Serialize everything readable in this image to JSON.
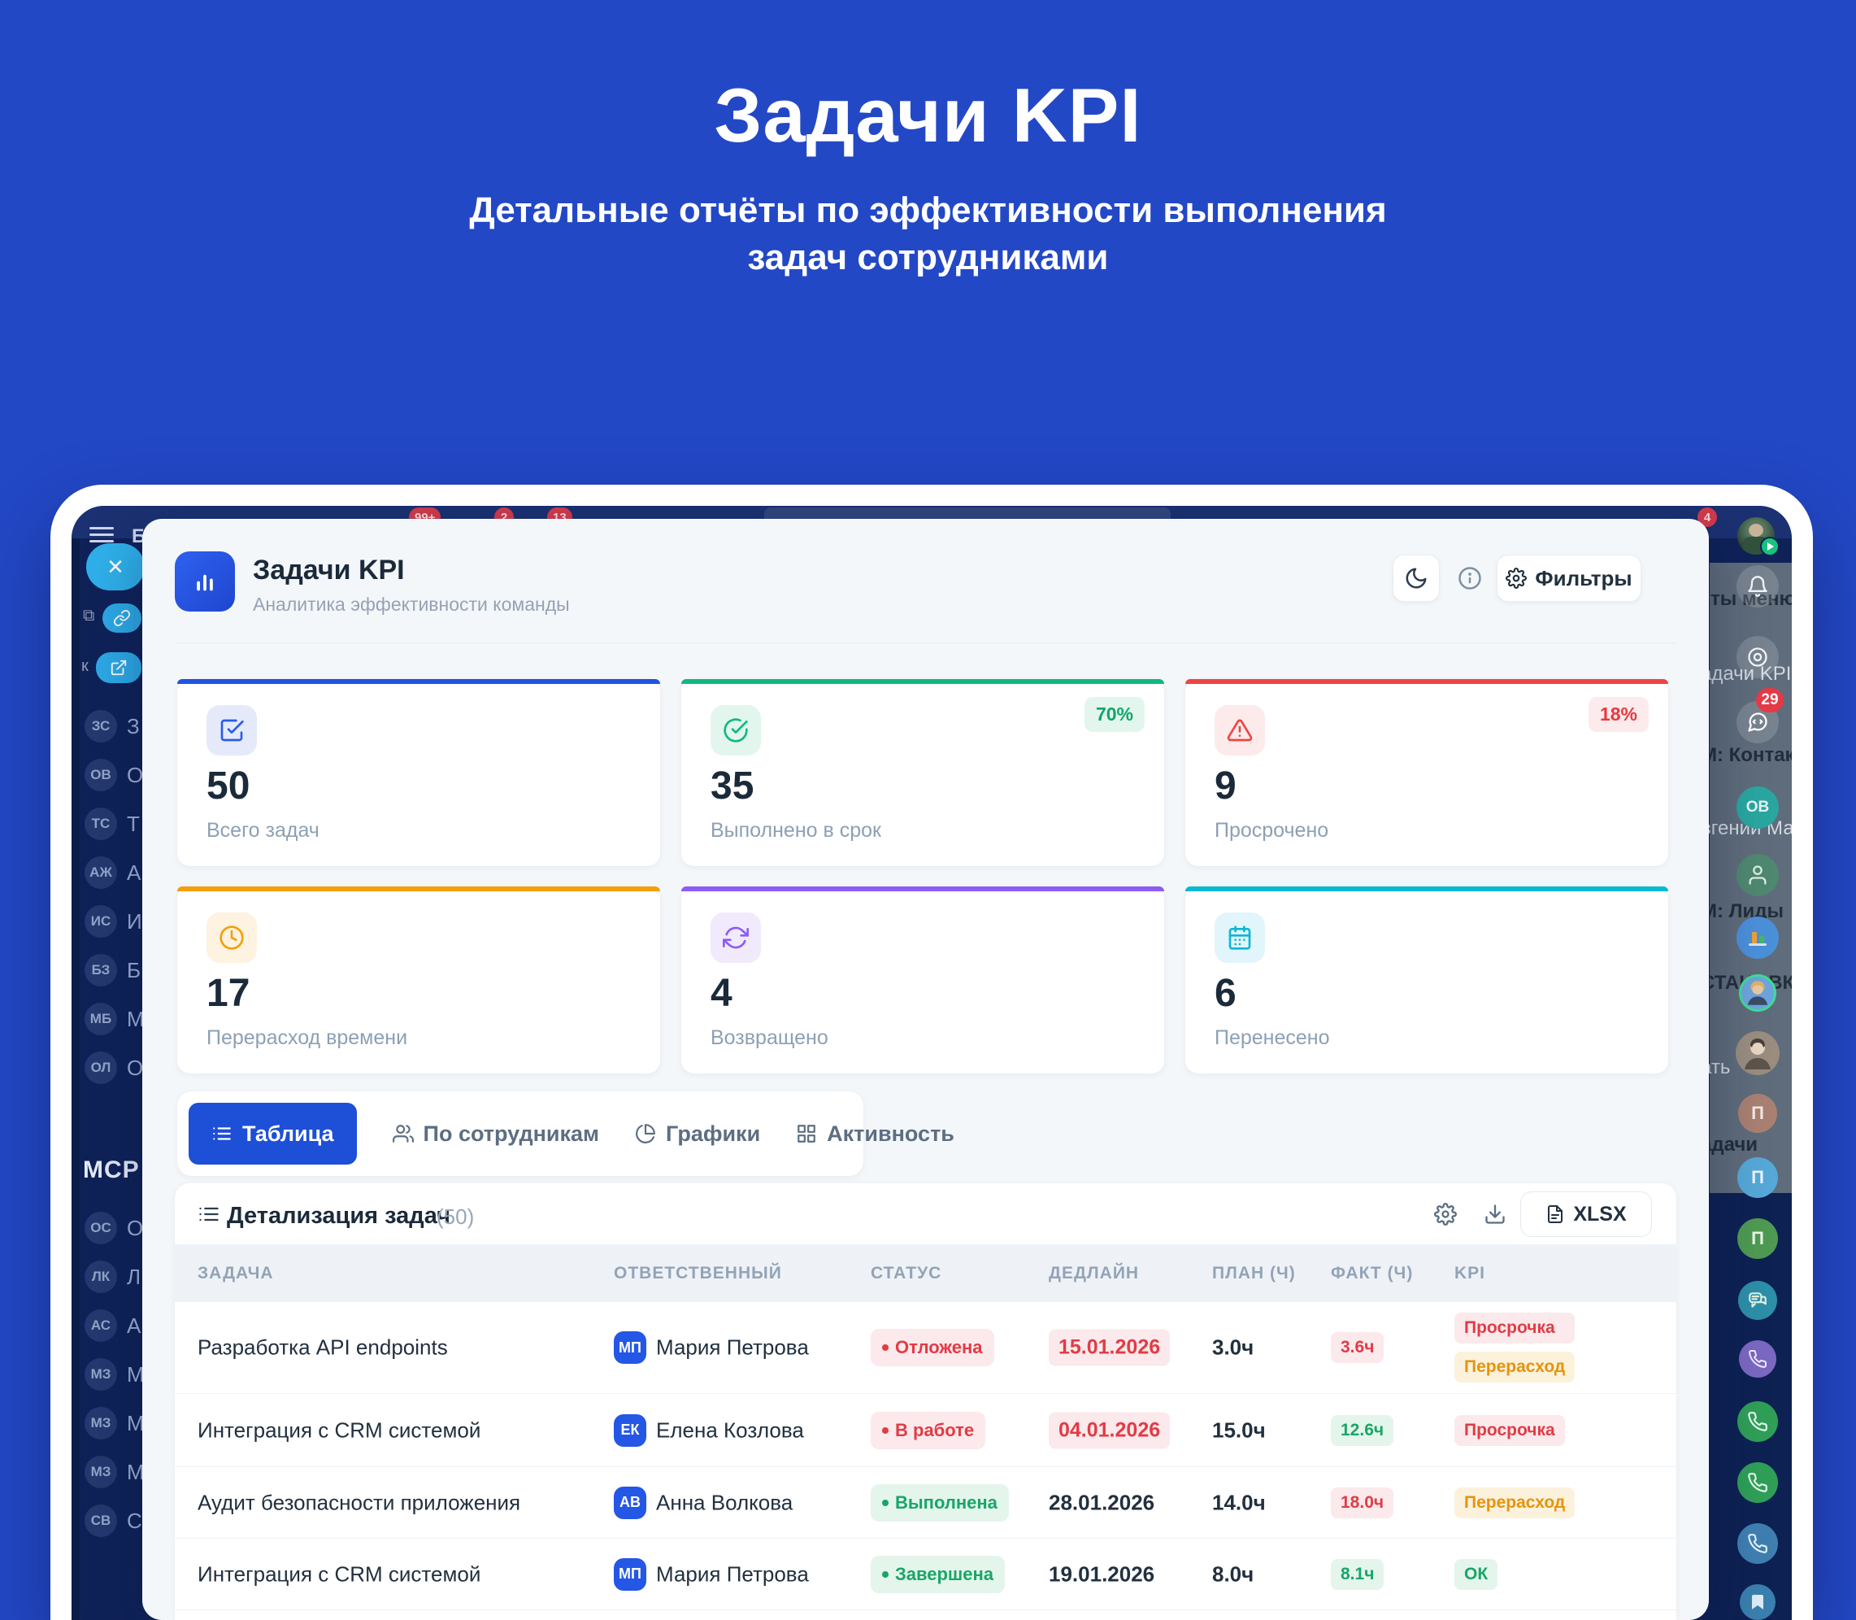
{
  "hero": {
    "title": "Задачи KPI",
    "subtitle_line1": "Детальные отчёты по эффективности выполнения",
    "subtitle_line2": "задач сотрудниками"
  },
  "header": {
    "title": "Задачи KPI",
    "subtitle": "Аналитика эффективности команды",
    "filters_label": "Фильтры"
  },
  "kpi_cards": [
    {
      "value": "50",
      "label": "Всего задач",
      "badge": "",
      "accent": "#2253e2",
      "icon": "check-square",
      "icon_bg": "#e4eafa",
      "icon_color": "#2b5be8",
      "badge_bg": "",
      "badge_color": ""
    },
    {
      "value": "35",
      "label": "Выполнено в срок",
      "badge": "70%",
      "accent": "#10b981",
      "icon": "check-circle",
      "icon_bg": "#e2f6ee",
      "icon_color": "#10b981",
      "badge_bg": "#e3f6ed",
      "badge_color": "#0fa56d"
    },
    {
      "value": "9",
      "label": "Просрочено",
      "badge": "18%",
      "accent": "#ef4444",
      "icon": "alert-triangle",
      "icon_bg": "#fdeaea",
      "icon_color": "#ef4444",
      "badge_bg": "#fdeaec",
      "badge_color": "#e5393f"
    },
    {
      "value": "17",
      "label": "Перерасход времени",
      "badge": "",
      "accent": "#f59e0b",
      "icon": "clock",
      "icon_bg": "#fdf3e0",
      "icon_color": "#f59e0b",
      "badge_bg": "",
      "badge_color": ""
    },
    {
      "value": "4",
      "label": "Возвращено",
      "badge": "",
      "accent": "#8b5cf6",
      "icon": "refresh",
      "icon_bg": "#f0eafc",
      "icon_color": "#8b5cf6",
      "badge_bg": "",
      "badge_color": ""
    },
    {
      "value": "6",
      "label": "Перенесено",
      "badge": "",
      "accent": "#0bb7d4",
      "icon": "calendar",
      "icon_bg": "#e1f5fa",
      "icon_color": "#0bb7d4",
      "badge_bg": "",
      "badge_color": ""
    }
  ],
  "tabs": [
    {
      "label": "Таблица",
      "icon": "list",
      "active": true
    },
    {
      "label": "По сотрудникам",
      "icon": "users",
      "active": false
    },
    {
      "label": "Графики",
      "icon": "pie",
      "active": false
    },
    {
      "label": "Активность",
      "icon": "grid",
      "active": false
    }
  ],
  "table": {
    "title": "Детализация задач",
    "count": "(50)",
    "export_label": "XLSX",
    "columns": [
      "ЗАДАЧА",
      "ОТВЕТСТВЕННЫЙ",
      "СТАТУС",
      "ДЕДЛАЙН",
      "ПЛАН (Ч)",
      "ФАКТ (Ч)",
      "KPI"
    ],
    "rows": [
      {
        "task": "Разработка API endpoints",
        "initials": "МП",
        "name": "Мария Петрова",
        "status": "Отложена",
        "status_kind": "red",
        "deadline": "15.01.2026",
        "deadline_kind": "red",
        "plan": "3.0ч",
        "fact": "3.6ч",
        "fact_kind": "red",
        "kpi": [
          {
            "label": "Просрочка",
            "kind": "red"
          },
          {
            "label": "Перерасход",
            "kind": "orange"
          }
        ]
      },
      {
        "task": "Интеграция с CRM системой",
        "initials": "ЕК",
        "name": "Елена Козлова",
        "status": "В работе",
        "status_kind": "red",
        "deadline": "04.01.2026",
        "deadline_kind": "red",
        "plan": "15.0ч",
        "fact": "12.6ч",
        "fact_kind": "green",
        "kpi": [
          {
            "label": "Просрочка",
            "kind": "red"
          }
        ]
      },
      {
        "task": "Аудит безопасности приложения",
        "initials": "АВ",
        "name": "Анна Волкова",
        "status": "Выполнена",
        "status_kind": "green",
        "deadline": "28.01.2026",
        "deadline_kind": "plain",
        "plan": "14.0ч",
        "fact": "18.0ч",
        "fact_kind": "red",
        "kpi": [
          {
            "label": "Перерасход",
            "kind": "orange"
          }
        ]
      },
      {
        "task": "Интеграция с CRM системой",
        "initials": "МП",
        "name": "Мария Петрова",
        "status": "Завершена",
        "status_kind": "green",
        "deadline": "19.01.2026",
        "deadline_kind": "plain",
        "plan": "8.0ч",
        "fact": "8.1ч",
        "fact_kind": "green",
        "kpi": [
          {
            "label": "ОК",
            "kind": "green"
          }
        ]
      }
    ]
  },
  "backdrop": {
    "top_badges": [
      "99+",
      "2",
      "13",
      "4"
    ],
    "sidebar": {
      "menu_letter": "Б",
      "logo": "МСР",
      "items_top": [
        {
          "initials": "ЗС",
          "letter": "З"
        },
        {
          "initials": "ОВ",
          "letter": "О"
        },
        {
          "initials": "ТС",
          "letter": "Т"
        },
        {
          "initials": "АЖ",
          "letter": "А"
        },
        {
          "initials": "ИС",
          "letter": "И"
        },
        {
          "initials": "БЗ",
          "letter": "Б"
        },
        {
          "initials": "МБ",
          "letter": "М"
        },
        {
          "initials": "ОЛ",
          "letter": "О"
        }
      ],
      "items_bottom": [
        {
          "initials": "ОС",
          "letter": "О"
        },
        {
          "initials": "ЛК",
          "letter": "Л"
        },
        {
          "initials": "АС",
          "letter": "А"
        },
        {
          "initials": "МЗ",
          "letter": "М"
        },
        {
          "initials": "МЗ",
          "letter": "М"
        },
        {
          "initials": "МЗ",
          "letter": "М"
        },
        {
          "initials": "СВ",
          "letter": "С"
        }
      ]
    },
    "right_panel": {
      "chat_badge": "29",
      "ov_initials": "ОВ",
      "p_initials": "П",
      "labels": {
        "menu": "кты меню",
        "kpi": "адачи KPI",
        "contacts": "М: Контакт",
        "employee": "вгений Ма",
        "leads": "М: Лиды",
        "setup": "СТАНОВКА",
        "call": "ать",
        "tasks": "адачи"
      }
    }
  },
  "colors": {
    "page_bg": "#2348c6",
    "app_bg": "#0f2258",
    "primary": "#1d4fd7",
    "red": "#e23b44",
    "green": "#18a666",
    "orange": "#e8930c"
  }
}
